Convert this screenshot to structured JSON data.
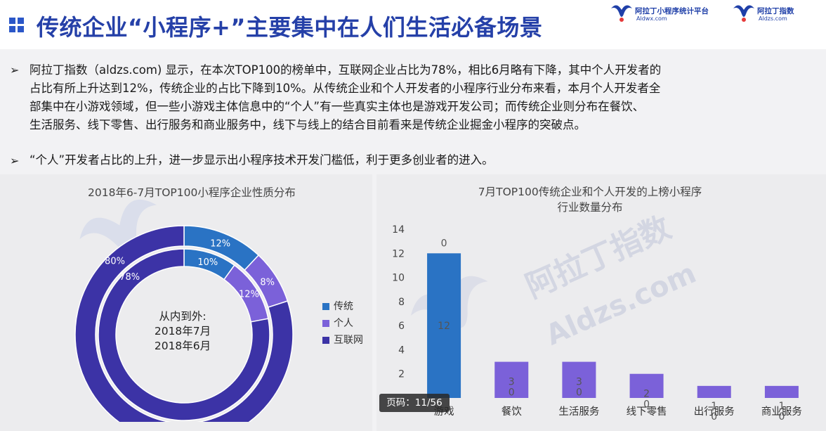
{
  "header": {
    "title": "传统企业“小程序+”主要集中在人们生活必备场景",
    "logo1_name": "阿拉丁小程序统计平台",
    "logo1_url": "Aldwx.com",
    "logo2_name": "阿拉丁指数",
    "logo2_url": "Aldzs.com"
  },
  "body": {
    "bullet_symbol": "➢",
    "paragraph1_lines": [
      "阿拉丁指数（aldzs.com) 显示，在本次TOP100的榜单中，互联网企业占比为78%，相比6月略有下降，其中个人开发者的",
      "占比有所上升达到12%，传统企业的占比下降到10%。从传统企业和个人开发者的小程序行业分布来看，本月个人开发者全",
      "部集中在小游戏领域，但一些小游戏主体信息中的“个人”有一些真实主体也是游戏开发公司；而传统企业则分布在餐饮、",
      "生活服务、线下零售、出行服务和商业服务中，线下与线上的结合目前看来是传统企业掘金小程序的突破点。"
    ],
    "paragraph2": " “个人”开发者占比的上升，进一步显示出小程序技术开发门槛低，利于更多创业者的进入。"
  },
  "watermark": {
    "text": "阿拉丁指数",
    "url": "Aldzs.com"
  },
  "pager": {
    "label": "页码：11/56"
  },
  "colors": {
    "title": "#2540a8",
    "traditional": "#2a73c4",
    "individual": "#7b61d9",
    "internet": "#3c33a6"
  },
  "chart_data": [
    {
      "type": "pie",
      "title": "2018年6-7月TOP100小程序企业性质分布",
      "center_label_lines": [
        "从内到外:",
        "2018年7月",
        "2018年6月"
      ],
      "legend": [
        "传统",
        "个人",
        "互联网"
      ],
      "series": [
        {
          "name": "2018年7月",
          "values": [
            10,
            12,
            78
          ],
          "labels": [
            "10%",
            "12%",
            "78%"
          ]
        },
        {
          "name": "2018年6月",
          "values": [
            12,
            8,
            80
          ],
          "labels": [
            "12%",
            "8%",
            "80%"
          ]
        }
      ]
    },
    {
      "type": "bar",
      "title_lines": [
        "7月TOP100传统企业和个人开发的上榜小程序",
        "行业数量分布"
      ],
      "categories": [
        "游戏",
        "餐饮",
        "生活服务",
        "线下零售",
        "出行服务",
        "商业服务"
      ],
      "series": [
        {
          "values": [
            12,
            3,
            3,
            2,
            1,
            1
          ],
          "labels": [
            "12",
            "3",
            "3",
            "2",
            "1",
            "1"
          ]
        },
        {
          "values": [
            0,
            0,
            0,
            0,
            0,
            0
          ],
          "labels": [
            "0",
            "0",
            "0",
            "0",
            "0",
            "0"
          ]
        }
      ],
      "ylim": [
        0,
        14
      ],
      "yticks": [
        "14",
        "12",
        "10",
        "8",
        "6",
        "4",
        "2"
      ]
    }
  ]
}
